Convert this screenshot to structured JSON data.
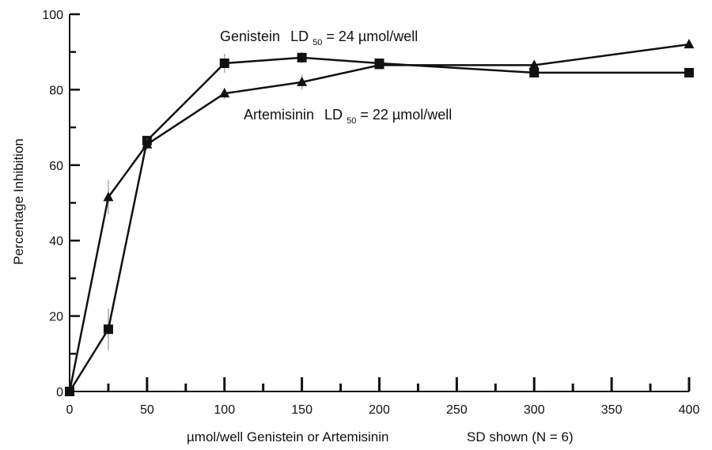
{
  "chart_data": {
    "type": "line",
    "title": "",
    "xlabel": "µmol/well Genistein or Artemisinin",
    "xlabel_note": "SD shown (N = 6)",
    "ylabel": "Percentage Inhibition",
    "xlim": [
      0,
      400
    ],
    "ylim": [
      0,
      100
    ],
    "x_ticks": [
      0,
      50,
      100,
      150,
      200,
      250,
      300,
      350,
      400
    ],
    "y_ticks": [
      0,
      20,
      40,
      60,
      80,
      100
    ],
    "grid": false,
    "series": [
      {
        "name": "Genistein",
        "marker": "square",
        "x": [
          0,
          25,
          50,
          100,
          150,
          200,
          300,
          400
        ],
        "y": [
          0,
          16.5,
          66.5,
          87,
          88.5,
          87,
          84.5,
          84.5
        ],
        "sd": [
          0,
          5.5,
          1,
          2.5,
          1.5,
          1,
          0.5,
          0.5
        ]
      },
      {
        "name": "Artemisinin",
        "marker": "triangle",
        "x": [
          0,
          25,
          50,
          100,
          150,
          200,
          300,
          400
        ],
        "y": [
          0,
          51.5,
          65.5,
          79,
          82,
          86.5,
          86.5,
          92
        ],
        "sd": [
          0,
          4.5,
          1.5,
          1.5,
          2,
          0.5,
          0.5,
          0.5
        ]
      }
    ],
    "annotations": [
      {
        "name_text": "Genistein",
        "ld_prefix": "LD",
        "ld_sub": "50",
        "value_text": " = 24 µmol/well"
      },
      {
        "name_text": "Artemisinin",
        "ld_prefix": "LD",
        "ld_sub": "50",
        "value_text": " = 22 µmol/well"
      }
    ],
    "colors": {
      "line": "#111111",
      "errorbar": "#aaaaaa"
    }
  }
}
